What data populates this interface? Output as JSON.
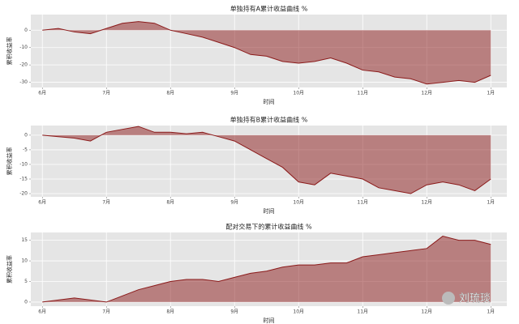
{
  "chart_data": [
    {
      "type": "area",
      "title": "单独持有A累计收益曲线 %",
      "xlabel": "时间",
      "ylabel": "累积收益率",
      "x": [
        0,
        0.25,
        0.5,
        0.75,
        1,
        1.25,
        1.5,
        1.75,
        2,
        2.25,
        2.5,
        2.75,
        3,
        3.25,
        3.5,
        3.75,
        4,
        4.25,
        4.5,
        4.75,
        5,
        5.25,
        5.5,
        5.75,
        6,
        6.25,
        6.5,
        6.75,
        7
      ],
      "values": [
        0,
        1,
        -1,
        -2,
        1,
        4,
        5,
        4,
        0,
        -2,
        -4,
        -7,
        -10,
        -14,
        -15,
        -18,
        -19,
        -18,
        -16,
        -19,
        -23,
        -24,
        -27,
        -28,
        -31,
        -30,
        -29,
        -30,
        -26
      ],
      "color": "#8b1a1a",
      "xlim": [
        -0.18,
        7.25
      ],
      "ylim": [
        -33,
        9
      ],
      "xticks": [
        {
          "value": 0,
          "label": "6月"
        },
        {
          "value": 1,
          "label": "7月"
        },
        {
          "value": 2,
          "label": "8月"
        },
        {
          "value": 3,
          "label": "9月"
        },
        {
          "value": 4,
          "label": "10月"
        },
        {
          "value": 5,
          "label": "11月"
        },
        {
          "value": 6,
          "label": "12月"
        },
        {
          "value": 7,
          "label": "1月"
        }
      ],
      "yticks": [
        -30,
        -20,
        -10,
        0
      ],
      "grid": true
    },
    {
      "type": "area",
      "title": "单独持有B累计收益曲线 %",
      "xlabel": "时间",
      "ylabel": "累积收益率",
      "x": [
        0,
        0.25,
        0.5,
        0.75,
        1,
        1.25,
        1.5,
        1.75,
        2,
        2.25,
        2.5,
        2.75,
        3,
        3.25,
        3.5,
        3.75,
        4,
        4.25,
        4.5,
        4.75,
        5,
        5.25,
        5.5,
        5.75,
        6,
        6.25,
        6.5,
        6.75,
        7
      ],
      "values": [
        0,
        -0.5,
        -1,
        -2,
        1,
        2,
        3,
        1,
        1,
        0.5,
        1,
        -0.5,
        -2,
        -5,
        -8,
        -11,
        -16,
        -17,
        -13,
        -14,
        -15,
        -18,
        -19,
        -20,
        -17,
        -16,
        -17,
        -19,
        -15
      ],
      "color": "#8b1a1a",
      "xlim": [
        -0.18,
        7.25
      ],
      "ylim": [
        -21.1,
        3.3
      ],
      "xticks": [
        {
          "value": 0,
          "label": "6月"
        },
        {
          "value": 1,
          "label": "7月"
        },
        {
          "value": 2,
          "label": "8月"
        },
        {
          "value": 3,
          "label": "9月"
        },
        {
          "value": 4,
          "label": "10月"
        },
        {
          "value": 5,
          "label": "11月"
        },
        {
          "value": 6,
          "label": "12月"
        },
        {
          "value": 7,
          "label": "1月"
        }
      ],
      "yticks": [
        -20,
        -15,
        -10,
        -5,
        0
      ],
      "grid": true
    },
    {
      "type": "area",
      "title": "配对交易下的累计收益曲线 %",
      "xlabel": "时间",
      "ylabel": "累积收益率",
      "x": [
        0,
        0.25,
        0.5,
        0.75,
        1,
        1.25,
        1.5,
        1.75,
        2,
        2.25,
        2.5,
        2.75,
        3,
        3.25,
        3.5,
        3.75,
        4,
        4.25,
        4.5,
        4.75,
        5,
        5.25,
        5.5,
        5.75,
        6,
        6.25,
        6.5,
        6.75,
        7
      ],
      "values": [
        0,
        0.5,
        1,
        0.5,
        0,
        1.5,
        3,
        4,
        5,
        5.5,
        5.5,
        5,
        6,
        7,
        7.5,
        8.5,
        9,
        9,
        9.5,
        9.5,
        11,
        11.5,
        12,
        12.5,
        13,
        16,
        15,
        15,
        14
      ],
      "color": "#8b1a1a",
      "xlim": [
        -0.18,
        7.25
      ],
      "ylim": [
        -1,
        16.9
      ],
      "xticks": [
        {
          "value": 0,
          "label": "6月"
        },
        {
          "value": 1,
          "label": "7月"
        },
        {
          "value": 2,
          "label": "8月"
        },
        {
          "value": 3,
          "label": "9月"
        },
        {
          "value": 4,
          "label": "10月"
        },
        {
          "value": 5,
          "label": "11月"
        },
        {
          "value": 6,
          "label": "12月"
        },
        {
          "value": 7,
          "label": "1月"
        }
      ],
      "yticks": [
        0,
        5,
        10,
        15
      ],
      "grid": true
    }
  ],
  "watermark": "刘琉琰"
}
